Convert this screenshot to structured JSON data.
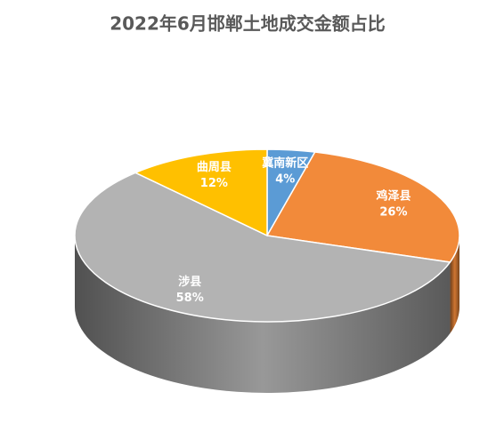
{
  "chart_data": {
    "type": "pie",
    "title": "2022年6月邯郸土地成交金额占比",
    "categories": [
      "冀南新区",
      "鸡泽县",
      "涉县",
      "曲周县"
    ],
    "values": [
      4,
      26,
      58,
      12
    ],
    "value_labels": [
      "4%",
      "26%",
      "58%",
      "12%"
    ],
    "colors": [
      "#5b9bd5",
      "#f28a3a",
      "#b3b3b3",
      "#ffc000"
    ]
  }
}
